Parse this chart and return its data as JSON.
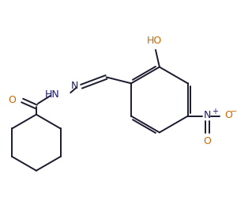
{
  "bg_color": "#ffffff",
  "line_color": "#1a1a2e",
  "atom_colors": {
    "O": "#cc6600",
    "N": "#1a1a6e",
    "default": "#1a1a2e"
  },
  "figsize": [
    3.0,
    2.54
  ],
  "dpi": 100,
  "lw": 1.4
}
